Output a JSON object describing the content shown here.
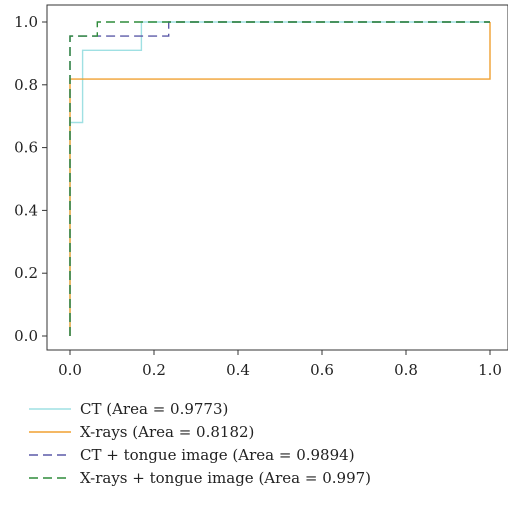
{
  "chart_data": {
    "type": "line",
    "title": "",
    "xlabel": "",
    "ylabel": "",
    "xlim": [
      -0.05,
      1.03
    ],
    "ylim": [
      -0.02,
      1.05
    ],
    "x_ticks": [
      "0.0",
      "0.2",
      "0.4",
      "0.6",
      "0.8",
      "1.0"
    ],
    "y_ticks": [
      "0.0",
      "0.2",
      "0.4",
      "0.6",
      "0.8",
      "1.0"
    ],
    "grid": false,
    "legend_position": "bottom",
    "series": [
      {
        "name": "CT (Area = 0.9773)",
        "color": "#9fe0e3",
        "dash": "solid",
        "x": [
          0,
          0,
          0.03,
          0.03,
          0.17,
          0.17,
          1.0
        ],
        "y": [
          0.0,
          0.68,
          0.68,
          0.91,
          0.91,
          1.0,
          1.0
        ]
      },
      {
        "name": "X-rays (Area = 0.8182)",
        "color": "#f0a030",
        "dash": "solid",
        "x": [
          0,
          0,
          1.0,
          1.0
        ],
        "y": [
          0.0,
          0.818,
          0.818,
          1.0
        ]
      },
      {
        "name": "CT + tongue image (Area = 0.9894)",
        "color": "#5c5aa8",
        "dash": "dashed",
        "x": [
          0,
          0,
          0.17,
          0.17,
          0.235,
          0.235,
          1.0
        ],
        "y": [
          0.0,
          0.955,
          0.955,
          0.955,
          0.955,
          1.0,
          1.0
        ]
      },
      {
        "name": "X-rays + tongue image (Area = 0.997)",
        "color": "#2e8b3a",
        "dash": "dashed",
        "x": [
          0,
          0,
          0.065,
          0.065,
          1.0
        ],
        "y": [
          0.0,
          0.955,
          0.955,
          1.0,
          1.0
        ]
      }
    ]
  }
}
